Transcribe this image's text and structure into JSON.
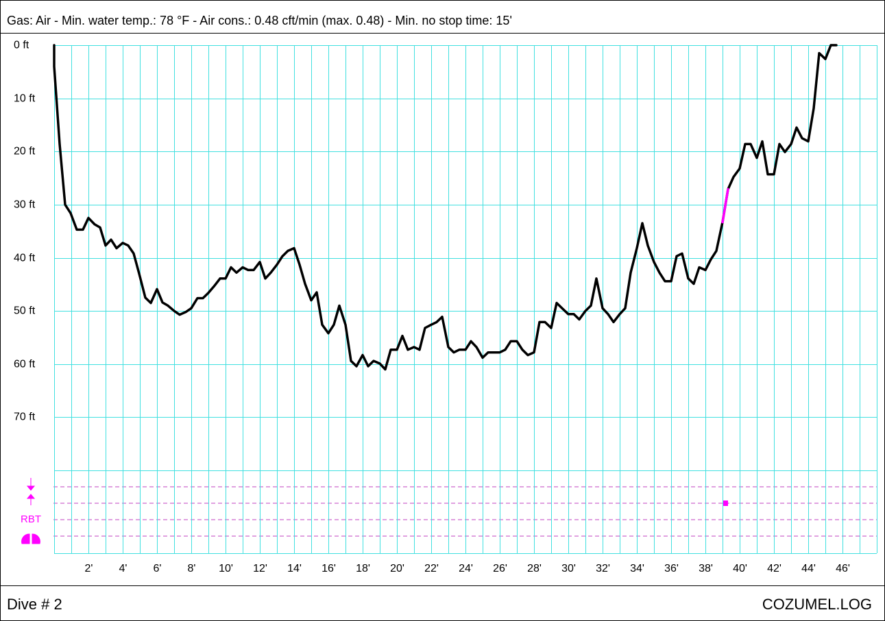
{
  "chart_data": {
    "type": "line",
    "title": "Gas: Air  -  Min. water temp.: 78 °F  -  Air cons.: 0.48 cft/min (max. 0.48)  -  Min. no stop time: 15'",
    "footer_left": "Dive # 2",
    "footer_right": "COZUMEL.LOG",
    "rbt_label": "RBT",
    "xlim": [
      0,
      48
    ],
    "xgrid_step": 1,
    "ylim": [
      0,
      80
    ],
    "y_inverted": true,
    "grid": true,
    "grid_color": "#40e0e0",
    "xticks": [
      {
        "value": 2,
        "label": "2'"
      },
      {
        "value": 4,
        "label": "4'"
      },
      {
        "value": 6,
        "label": "6'"
      },
      {
        "value": 8,
        "label": "8'"
      },
      {
        "value": 10,
        "label": "10'"
      },
      {
        "value": 12,
        "label": "12'"
      },
      {
        "value": 14,
        "label": "14'"
      },
      {
        "value": 16,
        "label": "16'"
      },
      {
        "value": 18,
        "label": "18'"
      },
      {
        "value": 20,
        "label": "20'"
      },
      {
        "value": 22,
        "label": "22'"
      },
      {
        "value": 24,
        "label": "24'"
      },
      {
        "value": 26,
        "label": "26'"
      },
      {
        "value": 28,
        "label": "28'"
      },
      {
        "value": 30,
        "label": "30'"
      },
      {
        "value": 32,
        "label": "32'"
      },
      {
        "value": 34,
        "label": "34'"
      },
      {
        "value": 36,
        "label": "36'"
      },
      {
        "value": 38,
        "label": "38'"
      },
      {
        "value": 40,
        "label": "40'"
      },
      {
        "value": 42,
        "label": "42'"
      },
      {
        "value": 44,
        "label": "44'"
      },
      {
        "value": 46,
        "label": "46'"
      }
    ],
    "yticks": [
      {
        "value": 0,
        "label": "0 ft"
      },
      {
        "value": 10,
        "label": "10 ft"
      },
      {
        "value": 20,
        "label": "20 ft"
      },
      {
        "value": 30,
        "label": "30 ft"
      },
      {
        "value": 40,
        "label": "40 ft"
      },
      {
        "value": 50,
        "label": "50 ft"
      },
      {
        "value": 60,
        "label": "60 ft"
      },
      {
        "value": 70,
        "label": "70 ft"
      },
      80
    ],
    "x": [
      0,
      0,
      0.32,
      0.64,
      0.96,
      1.32,
      1.68,
      2,
      2.36,
      2.68,
      3,
      3.32,
      3.64,
      4,
      4.32,
      4.64,
      4.96,
      5.32,
      5.64,
      6,
      6.32,
      6.64,
      7,
      7.32,
      7.68,
      8,
      8.36,
      8.68,
      9,
      9.32,
      9.68,
      10,
      10.32,
      10.64,
      11,
      11.32,
      11.64,
      12,
      12.32,
      12.64,
      13,
      13.32,
      13.64,
      14,
      14.32,
      14.64,
      15,
      15.32,
      15.64,
      16,
      16.32,
      16.64,
      17,
      17.32,
      17.64,
      18,
      18.32,
      18.64,
      19,
      19.32,
      19.64,
      20,
      20.32,
      20.64,
      21,
      21.32,
      21.64,
      22,
      22.32,
      22.64,
      23,
      23.32,
      23.64,
      24,
      24.32,
      24.64,
      25,
      25.32,
      25.64,
      26,
      26.32,
      26.64,
      27,
      27.32,
      27.64,
      28,
      28.32,
      28.64,
      29,
      29.32,
      29.64,
      30,
      30.32,
      30.64,
      31,
      31.32,
      31.64,
      32,
      32.32,
      32.64,
      33,
      33.32,
      33.64,
      34,
      34.32,
      34.64,
      35,
      35.32,
      35.64,
      36,
      36.32,
      36.64,
      37,
      37.32,
      37.64,
      38,
      38.32,
      38.64,
      39,
      39.32,
      39.64,
      40,
      40.32,
      40.64,
      41,
      41.32,
      41.64,
      42,
      42.32,
      42.64,
      43,
      43.32,
      43.64,
      44,
      44.32,
      44.64,
      45,
      45.32,
      45.64
    ],
    "series": [
      {
        "color": "#000000",
        "values": [
          0,
          4,
          18.6,
          30,
          31.6,
          34.7,
          34.7,
          32.5,
          33.7,
          34.3,
          37.7,
          36.6,
          38.2,
          37.2,
          37.7,
          39.2,
          43,
          47.5,
          48.5,
          45.9,
          48.4,
          49,
          50,
          50.7,
          50.2,
          49.5,
          47.6,
          47.6,
          46.6,
          45.4,
          43.9,
          43.9,
          41.8,
          42.8,
          41.8,
          42.3,
          42.3,
          40.8,
          43.9,
          42.8,
          41.3,
          39.7,
          38.7,
          38.2,
          41.3,
          44.9,
          48,
          46.5,
          52.6,
          54.2,
          52.6,
          49,
          52.6,
          59.4,
          60.4,
          58.3,
          60.4,
          59.4,
          59.9,
          61,
          57.3,
          57.3,
          54.7,
          57.3,
          56.8,
          57.3,
          53.2,
          52.6,
          52.1,
          51.1,
          56.8,
          57.8,
          57.3,
          57.3,
          55.7,
          56.8,
          58.8,
          57.8,
          57.8,
          57.8,
          57.3,
          55.7,
          55.7,
          57.3,
          58.3,
          57.8,
          52.1,
          52.1,
          53.2,
          48.5,
          49.5,
          50.6,
          50.6,
          51.6,
          50,
          49,
          43.9,
          49.5,
          50.6,
          52.1,
          50.6,
          49.5,
          42.8,
          38.2,
          33.5,
          37.7,
          40.8,
          42.8,
          44.4,
          44.4,
          39.7,
          39.2,
          43.9,
          44.9,
          41.8,
          42.3,
          40.3,
          38.7,
          33.3,
          27.1,
          24.8,
          23.2,
          18.6,
          18.6,
          21.2,
          18.1,
          24.3,
          24.3,
          18.6,
          20.1,
          18.6,
          15.5,
          17.5,
          18.1,
          11.9,
          1.5,
          2.6,
          0,
          0
        ]
      },
      {
        "color": "#ff00ff",
        "x": [
          39,
          39.32
        ],
        "values": [
          33.3,
          27.1
        ]
      }
    ]
  }
}
